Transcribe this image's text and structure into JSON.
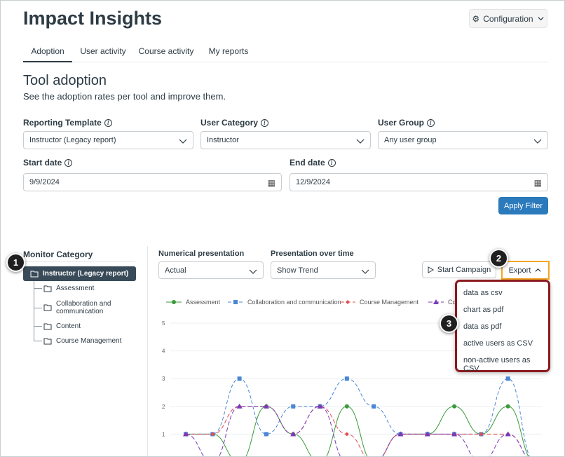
{
  "header": {
    "title": "Impact Insights",
    "config_label": "Configuration"
  },
  "tabs": [
    {
      "label": "Adoption",
      "active": true
    },
    {
      "label": "User activity",
      "active": false
    },
    {
      "label": "Course activity",
      "active": false
    },
    {
      "label": "My reports",
      "active": false
    }
  ],
  "section": {
    "title": "Tool adoption",
    "subtitle": "See the adoption rates per tool and improve them."
  },
  "filters": {
    "reporting_template": {
      "label": "Reporting Template",
      "value": "Instructor (Legacy report)"
    },
    "user_category": {
      "label": "User Category",
      "value": "Instructor"
    },
    "user_group": {
      "label": "User Group",
      "value": "Any user group"
    },
    "start_date": {
      "label": "Start date",
      "value": "9/9/2024"
    },
    "end_date": {
      "label": "End date",
      "value": "12/9/2024"
    },
    "apply_label": "Apply Filter"
  },
  "monitor": {
    "label": "Monitor Category",
    "active_item": "Instructor (Legacy report)",
    "items": [
      "Assessment",
      "Collaboration and communication",
      "Content",
      "Course Management"
    ]
  },
  "controls": {
    "numerical_label": "Numerical presentation",
    "numerical_value": "Actual",
    "time_label": "Presentation over time",
    "time_value": "Show Trend",
    "campaign_label": "Start Campaign",
    "export_label": "Export"
  },
  "export_menu": [
    "data as csv",
    "chart as pdf",
    "data as pdf",
    "active users as CSV",
    "non-active users as CSV"
  ],
  "callouts": [
    "1",
    "2",
    "3"
  ],
  "colors": {
    "accent": "#2b7abc",
    "assessment": "#3a9a3a",
    "collaboration": "#4a86d6",
    "course_management": "#e05050",
    "content": "#7a3ab8",
    "callout_border": "#8b1a1f",
    "export_highlight": "#f5a623"
  },
  "chart_data": {
    "type": "line",
    "legend": [
      "Assessment",
      "Collaboration and communication",
      "Course Management",
      "Co"
    ],
    "y_ticks": [
      "5",
      "4",
      "3",
      "2",
      "1"
    ],
    "ylim": [
      0,
      5
    ],
    "x": [
      0,
      1,
      2,
      3,
      4,
      5,
      6,
      7,
      8,
      9,
      10,
      11,
      12,
      13
    ],
    "series": [
      {
        "name": "Assessment",
        "marker": "circle",
        "values": [
          1,
          1,
          0,
          2,
          1,
          0,
          2,
          0,
          1,
          1,
          2,
          1,
          2,
          0
        ]
      },
      {
        "name": "Collaboration and communication",
        "marker": "square",
        "values": [
          1,
          1,
          3,
          1,
          2,
          2,
          3,
          2,
          1,
          1,
          1,
          1,
          3,
          0
        ]
      },
      {
        "name": "Course Management",
        "marker": "diamond",
        "values": [
          1,
          1,
          2,
          2,
          1,
          2,
          1,
          0,
          1,
          1,
          1,
          1,
          1,
          0
        ]
      },
      {
        "name": "Co",
        "marker": "triangle",
        "values": [
          1,
          0,
          2,
          2,
          1,
          2,
          0,
          0,
          1,
          1,
          1,
          0,
          1,
          0
        ]
      }
    ]
  }
}
